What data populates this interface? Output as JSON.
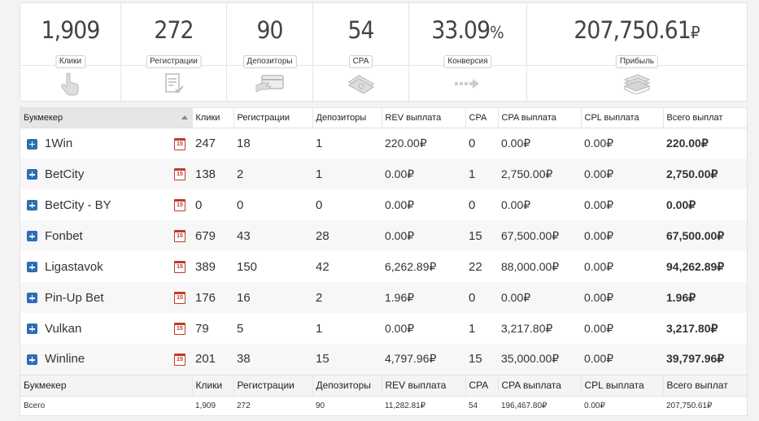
{
  "stats": [
    {
      "value": "1,909",
      "suffix": "",
      "label": "Клики",
      "icon": "hand-pointer-icon"
    },
    {
      "value": "272",
      "suffix": "",
      "label": "Регистрации",
      "icon": "form-check-icon"
    },
    {
      "value": "90",
      "suffix": "",
      "label": "Депозиторы",
      "icon": "card-deposit-icon"
    },
    {
      "value": "54",
      "suffix": "",
      "label": "CPA",
      "icon": "money-stack-icon"
    },
    {
      "value": "33.09",
      "suffix": "%",
      "label": "Конверсия",
      "icon": "arrow-right-icon"
    },
    {
      "value": "207,750.61",
      "suffix": "₽",
      "label": "Прибыль",
      "icon": "banknotes-icon"
    }
  ],
  "table": {
    "headers": [
      "Букмекер",
      "Клики",
      "Регистрации",
      "Депозиторы",
      "REV выплата",
      "CPA",
      "CPA выплата",
      "CPL выплата",
      "Всего выплат"
    ],
    "rows": [
      {
        "name": "1Win",
        "clicks": "247",
        "regs": "18",
        "deps": "1",
        "rev": "220.00₽",
        "cpa": "0",
        "cpa_pay": "0.00₽",
        "cpl_pay": "0.00₽",
        "total": "220.00₽"
      },
      {
        "name": "BetCity",
        "clicks": "138",
        "regs": "2",
        "deps": "1",
        "rev": "0.00₽",
        "cpa": "1",
        "cpa_pay": "2,750.00₽",
        "cpl_pay": "0.00₽",
        "total": "2,750.00₽"
      },
      {
        "name": "BetCity - BY",
        "clicks": "0",
        "regs": "0",
        "deps": "0",
        "rev": "0.00₽",
        "cpa": "0",
        "cpa_pay": "0.00₽",
        "cpl_pay": "0.00₽",
        "total": "0.00₽"
      },
      {
        "name": "Fonbet",
        "clicks": "679",
        "regs": "43",
        "deps": "28",
        "rev": "0.00₽",
        "cpa": "15",
        "cpa_pay": "67,500.00₽",
        "cpl_pay": "0.00₽",
        "total": "67,500.00₽"
      },
      {
        "name": "Ligastavok",
        "clicks": "389",
        "regs": "150",
        "deps": "42",
        "rev": "6,262.89₽",
        "cpa": "22",
        "cpa_pay": "88,000.00₽",
        "cpl_pay": "0.00₽",
        "total": "94,262.89₽"
      },
      {
        "name": "Pin-Up Bet",
        "clicks": "176",
        "regs": "16",
        "deps": "2",
        "rev": "1.96₽",
        "cpa": "0",
        "cpa_pay": "0.00₽",
        "cpl_pay": "0.00₽",
        "total": "1.96₽"
      },
      {
        "name": "Vulkan",
        "clicks": "79",
        "regs": "5",
        "deps": "1",
        "rev": "0.00₽",
        "cpa": "1",
        "cpa_pay": "3,217.80₽",
        "cpl_pay": "0.00₽",
        "total": "3,217.80₽"
      },
      {
        "name": "Winline",
        "clicks": "201",
        "regs": "38",
        "deps": "15",
        "rev": "4,797.96₽",
        "cpa": "15",
        "cpa_pay": "35,000.00₽",
        "cpl_pay": "0.00₽",
        "total": "39,797.96₽"
      }
    ],
    "calendar_glyph": "15",
    "footer_headers": [
      "Букмекер",
      "Клики",
      "Регистрации",
      "Депозиторы",
      "REV выплата",
      "CPA",
      "CPA выплата",
      "CPL выплата",
      "Всего выплат"
    ],
    "total": {
      "name": "Всего",
      "clicks": "1,909",
      "regs": "272",
      "deps": "90",
      "rev": "11,282.81₽",
      "cpa": "54",
      "cpa_pay": "196,467.80₽",
      "cpl_pay": "0.00₽",
      "total": "207,750.61₽"
    }
  }
}
